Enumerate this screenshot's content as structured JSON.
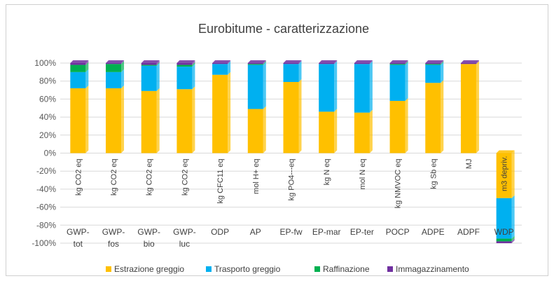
{
  "chart_data": {
    "type": "bar",
    "stacked": true,
    "title": "Eurobitume - caratterizzazione",
    "xlabel": "",
    "ylabel": "",
    "ylim": [
      -100,
      100
    ],
    "yticks": [
      "-100%",
      "-80%",
      "-60%",
      "-40%",
      "-20%",
      "0%",
      "20%",
      "40%",
      "60%",
      "80%",
      "100%"
    ],
    "ytick_values": [
      -100,
      -80,
      -60,
      -40,
      -20,
      0,
      20,
      40,
      60,
      80,
      100
    ],
    "grid": true,
    "legend_position": "bottom",
    "categories": [
      {
        "line1": "GWP-",
        "line2": "tot",
        "unit": "kg CO2 eq"
      },
      {
        "line1": "GWP-",
        "line2": "fos",
        "unit": "kg CO2 eq"
      },
      {
        "line1": "GWP-",
        "line2": "bio",
        "unit": "kg CO2 eq"
      },
      {
        "line1": "GWP-",
        "line2": "luc",
        "unit": "kg CO2 eq"
      },
      {
        "line1": "ODP",
        "line2": "",
        "unit": "kg CFC11 eq"
      },
      {
        "line1": "AP",
        "line2": "",
        "unit": "mol H+ eq"
      },
      {
        "line1": "EP-fw",
        "line2": "",
        "unit": "kg PO4---eq"
      },
      {
        "line1": "EP-mar",
        "line2": "",
        "unit": "kg N eq"
      },
      {
        "line1": "EP-ter",
        "line2": "",
        "unit": "mol N eq"
      },
      {
        "line1": "POCP",
        "line2": "",
        "unit": "kg NMVOC eq"
      },
      {
        "line1": "ADPE",
        "line2": "",
        "unit": "kg Sb eq"
      },
      {
        "line1": "ADPF",
        "line2": "",
        "unit": "MJ"
      },
      {
        "line1": "WDP",
        "line2": "",
        "unit": "m3 depriv."
      }
    ],
    "series": [
      {
        "name": "Estrazione greggio",
        "color": "#FFC000",
        "values": [
          72,
          72,
          69,
          71,
          87,
          49,
          79,
          46,
          45,
          58,
          78,
          99,
          -50
        ]
      },
      {
        "name": "Trasporto greggio",
        "color": "#00B0F0",
        "values": [
          18,
          18,
          28,
          25,
          12,
          49,
          20,
          53,
          54,
          40,
          20,
          0,
          -45
        ]
      },
      {
        "name": "Raffinazione",
        "color": "#00B050",
        "values": [
          8,
          9,
          1,
          2,
          0,
          1,
          0,
          0,
          0,
          1,
          1,
          0,
          -3
        ]
      },
      {
        "name": "Immagazzinamento",
        "color": "#7030A0",
        "values": [
          2,
          1,
          2,
          2,
          1,
          1,
          1,
          1,
          1,
          1,
          1,
          1,
          -2
        ]
      }
    ]
  }
}
